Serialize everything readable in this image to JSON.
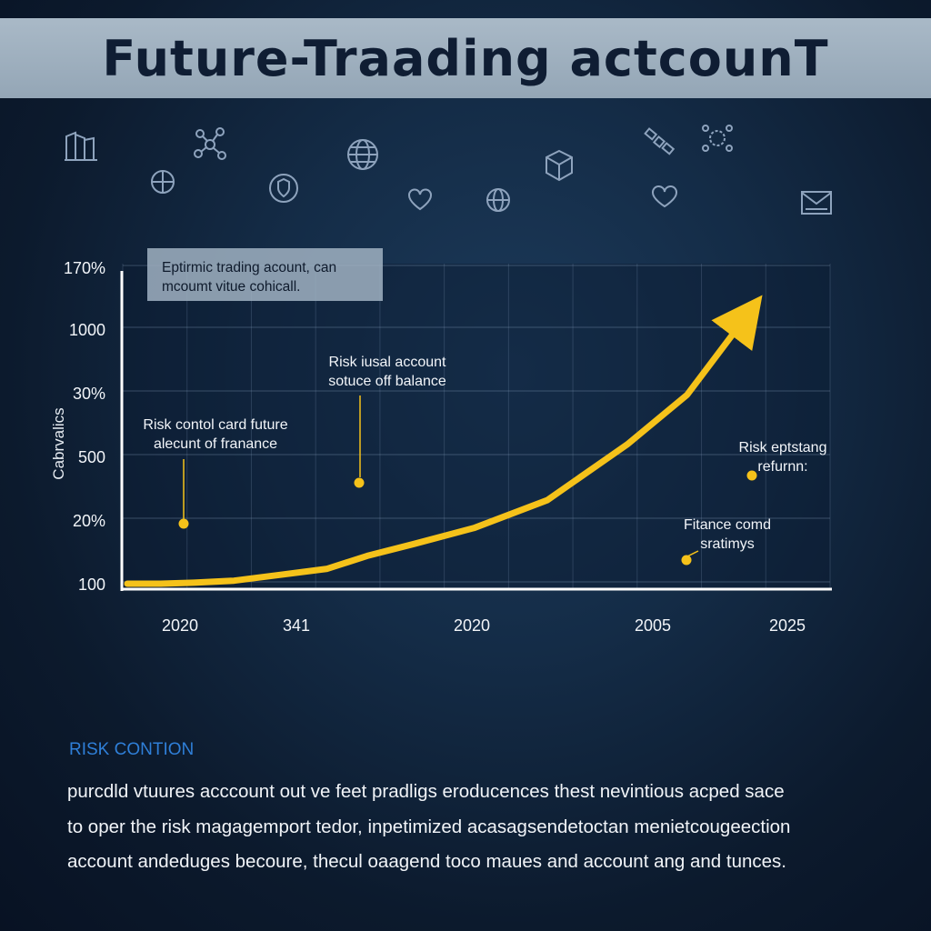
{
  "title": "Future-Traading actcounT",
  "note_box": {
    "line1": "Eptirmic trading acount, can",
    "line2": "mcoumt vitue cohicall."
  },
  "icons": [
    "building-icon",
    "network-icon",
    "compass-icon",
    "globe-icon",
    "shield-icon",
    "heart-icon",
    "globe-icon",
    "cube-icon",
    "satellite-icon",
    "gear-network-icon",
    "heart-icon",
    "mail-icon"
  ],
  "colors": {
    "line": "#f5c21a",
    "accent_blue": "#2f7fd8",
    "title_band": "#a9b9c7"
  },
  "chart_data": {
    "type": "line",
    "ylabel": "Cabrvalics",
    "y_tick_labels": [
      "100",
      "20%",
      "500",
      "30%",
      "1000",
      "170%"
    ],
    "x_tick_labels": [
      "2020",
      "341",
      "2020",
      "2005",
      "2025"
    ],
    "grid": true,
    "series": [
      {
        "x": [
          0,
          0.5,
          1,
          1.6,
          2.3,
          3,
          3.6,
          4.3,
          5.2,
          6.3,
          7.5,
          8.4,
          9.3
        ],
        "values": [
          100,
          100,
          105,
          115,
          145,
          175,
          240,
          300,
          380,
          520,
          800,
          1050,
          1450
        ]
      }
    ],
    "arrow_end": true,
    "annotations": [
      {
        "text": [
          "Risk contol card future",
          "alecunt of franance"
        ],
        "x": 1.5,
        "y": 330
      },
      {
        "text": [
          "Risk iusal account",
          "sotuce off balance"
        ],
        "x": 3.4,
        "y": 480
      },
      {
        "text": [
          "Risk eptstang",
          "refurnn:"
        ],
        "x": 9.1,
        "y": 620
      },
      {
        "text": [
          "Fitance comd",
          "sratimys"
        ],
        "x": 8.2,
        "y": 110
      }
    ]
  },
  "section": {
    "heading": "RISK CONTION",
    "lines": [
      "purcdld vtuures acccount out ve feet pradligs eroducences thest nevintious acped sace",
      "to oper the risk magagemport tedor, inpetimized acasagsendetoctan menietcougeection",
      "account andeduges becoure, thecul oaagend toco maues and account ang and tunces."
    ]
  }
}
